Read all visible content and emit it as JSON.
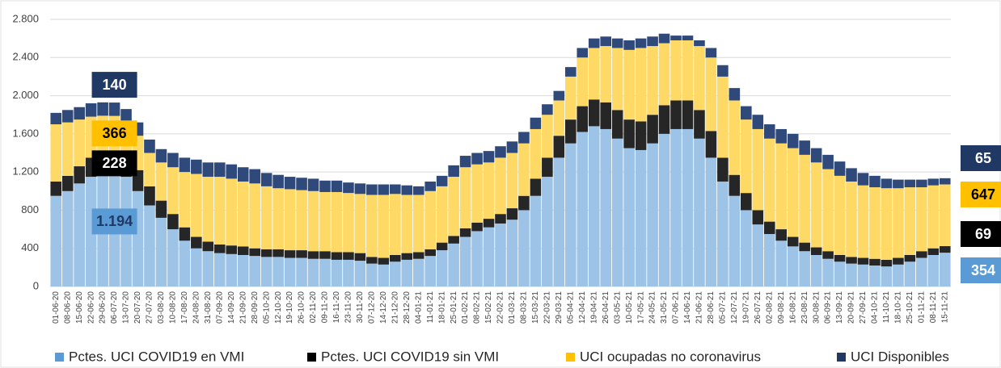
{
  "chart_data": {
    "type": "stacked-bar",
    "categories": [
      "01-06-20",
      "08-06-20",
      "15-06-20",
      "22-06-20",
      "29-06-20",
      "06-07-20",
      "13-07-20",
      "20-07-20",
      "27-07-20",
      "03-08-20",
      "10-08-20",
      "17-08-20",
      "24-08-20",
      "31-08-20",
      "07-09-20",
      "14-09-20",
      "21-09-20",
      "28-09-20",
      "05-10-20",
      "12-10-20",
      "19-10-20",
      "26-10-20",
      "02-11-20",
      "09-11-20",
      "16-11-20",
      "23-11-20",
      "30-11-20",
      "07-12-20",
      "14-12-20",
      "21-12-20",
      "28-12-20",
      "04-01-21",
      "11-01-21",
      "18-01-21",
      "25-01-21",
      "01-02-21",
      "08-02-21",
      "15-02-21",
      "22-02-21",
      "01-03-21",
      "08-03-21",
      "15-03-21",
      "22-03-21",
      "29-03-21",
      "05-04-21",
      "12-04-21",
      "19-04-21",
      "26-04-21",
      "03-05-21",
      "10-05-21",
      "17-05-21",
      "24-05-21",
      "31-05-21",
      "07-06-21",
      "14-06-21",
      "21-06-21",
      "28-06-21",
      "05-07-21",
      "12-07-21",
      "19-07-21",
      "26-07-21",
      "02-08-21",
      "09-08-21",
      "16-08-21",
      "23-08-21",
      "30-08-21",
      "06-09-21",
      "13-09-21",
      "20-09-21",
      "27-09-21",
      "04-10-21",
      "11-10-21",
      "18-10-21",
      "25-10-21",
      "01-11-21",
      "08-11-21",
      "15-11-21"
    ],
    "series": [
      {
        "name": "Pctes. UCI COVID19 en VMI",
        "color": "#9dc3e6",
        "label_color": "#5b9bd5",
        "values": [
          950,
          1000,
          1080,
          1150,
          1180,
          1194,
          1150,
          1000,
          850,
          720,
          600,
          480,
          400,
          370,
          350,
          340,
          330,
          320,
          310,
          310,
          300,
          300,
          290,
          290,
          280,
          280,
          270,
          240,
          230,
          260,
          280,
          290,
          320,
          380,
          450,
          520,
          580,
          620,
          660,
          700,
          800,
          950,
          1150,
          1350,
          1500,
          1620,
          1680,
          1650,
          1550,
          1450,
          1430,
          1500,
          1600,
          1650,
          1650,
          1550,
          1350,
          1100,
          950,
          800,
          650,
          550,
          480,
          420,
          370,
          330,
          290,
          260,
          240,
          230,
          220,
          210,
          230,
          260,
          300,
          330,
          354
        ],
        "value_labels": [
          null,
          null,
          null,
          null,
          null,
          "1.194",
          null,
          null,
          null,
          null,
          null,
          null,
          null,
          null,
          null,
          null,
          null,
          null,
          null,
          null,
          null,
          null,
          null,
          null,
          null,
          null,
          null,
          null,
          null,
          null,
          null,
          null,
          null,
          null,
          null,
          null,
          null,
          null,
          null,
          null,
          null,
          null,
          null,
          null,
          null,
          null,
          null,
          null,
          null,
          null,
          null,
          null,
          null,
          null,
          null,
          null,
          null,
          null,
          null,
          null,
          null,
          null,
          null,
          null,
          null,
          null,
          null,
          null,
          null,
          null,
          null,
          null,
          null,
          null,
          null,
          null,
          "354"
        ]
      },
      {
        "name": "Pctes. UCI COVID19 sin VMI",
        "color": "#262626",
        "label_color": "#000000",
        "values": [
          150,
          160,
          180,
          200,
          220,
          228,
          230,
          220,
          200,
          180,
          160,
          140,
          120,
          100,
          90,
          90,
          90,
          80,
          80,
          80,
          80,
          80,
          80,
          80,
          80,
          80,
          80,
          70,
          70,
          70,
          70,
          70,
          70,
          80,
          80,
          90,
          90,
          90,
          100,
          120,
          150,
          180,
          200,
          230,
          250,
          270,
          280,
          280,
          300,
          300,
          300,
          300,
          300,
          300,
          300,
          300,
          280,
          250,
          220,
          180,
          150,
          130,
          120,
          100,
          90,
          80,
          80,
          70,
          70,
          70,
          70,
          70,
          70,
          70,
          70,
          70,
          69
        ],
        "value_labels": [
          null,
          null,
          null,
          null,
          null,
          "228",
          null,
          null,
          null,
          null,
          null,
          null,
          null,
          null,
          null,
          null,
          null,
          null,
          null,
          null,
          null,
          null,
          null,
          null,
          null,
          null,
          null,
          null,
          null,
          null,
          null,
          null,
          null,
          null,
          null,
          null,
          null,
          null,
          null,
          null,
          null,
          null,
          null,
          null,
          null,
          null,
          null,
          null,
          null,
          null,
          null,
          null,
          null,
          null,
          null,
          null,
          null,
          null,
          null,
          null,
          null,
          null,
          null,
          null,
          null,
          null,
          null,
          null,
          null,
          null,
          null,
          null,
          null,
          null,
          null,
          null,
          "69"
        ]
      },
      {
        "name": "UCI ocupadas no coronavirus",
        "color": "#ffd966",
        "label_color": "#ffc000",
        "values": [
          600,
          560,
          490,
          430,
          390,
          366,
          340,
          360,
          350,
          400,
          490,
          580,
          660,
          680,
          710,
          700,
          680,
          680,
          660,
          640,
          640,
          630,
          630,
          620,
          630,
          620,
          620,
          650,
          660,
          640,
          610,
          600,
          610,
          590,
          620,
          640,
          610,
          590,
          590,
          580,
          550,
          520,
          450,
          370,
          450,
          510,
          540,
          590,
          650,
          730,
          770,
          720,
          650,
          630,
          630,
          670,
          770,
          850,
          780,
          770,
          850,
          870,
          900,
          930,
          920,
          890,
          860,
          830,
          790,
          760,
          750,
          750,
          730,
          710,
          670,
          660,
          647
        ],
        "value_labels": [
          null,
          null,
          null,
          null,
          null,
          "366",
          null,
          null,
          null,
          null,
          null,
          null,
          null,
          null,
          null,
          null,
          null,
          null,
          null,
          null,
          null,
          null,
          null,
          null,
          null,
          null,
          null,
          null,
          null,
          null,
          null,
          null,
          null,
          null,
          null,
          null,
          null,
          null,
          null,
          null,
          null,
          null,
          null,
          null,
          null,
          null,
          null,
          null,
          null,
          null,
          null,
          null,
          null,
          null,
          null,
          null,
          null,
          null,
          null,
          null,
          null,
          null,
          null,
          null,
          null,
          null,
          null,
          null,
          null,
          null,
          null,
          null,
          null,
          null,
          null,
          null,
          "647"
        ]
      },
      {
        "name": "UCI Disponibles",
        "color": "#2f4a7a",
        "label_color": "#1f3864",
        "values": [
          120,
          130,
          130,
          140,
          140,
          140,
          140,
          140,
          140,
          140,
          150,
          150,
          150,
          150,
          150,
          150,
          150,
          150,
          140,
          140,
          130,
          130,
          130,
          120,
          120,
          110,
          110,
          110,
          110,
          100,
          100,
          90,
          100,
          110,
          120,
          120,
          120,
          120,
          120,
          120,
          120,
          120,
          110,
          100,
          100,
          100,
          100,
          100,
          100,
          100,
          100,
          100,
          100,
          50,
          50,
          60,
          100,
          120,
          130,
          140,
          150,
          150,
          150,
          150,
          150,
          150,
          150,
          150,
          140,
          130,
          120,
          100,
          90,
          80,
          80,
          70,
          65
        ],
        "value_labels": [
          null,
          null,
          null,
          null,
          null,
          "140",
          null,
          null,
          null,
          null,
          null,
          null,
          null,
          null,
          null,
          null,
          null,
          null,
          null,
          null,
          null,
          null,
          null,
          null,
          null,
          null,
          null,
          null,
          null,
          null,
          null,
          null,
          null,
          null,
          null,
          null,
          null,
          null,
          null,
          null,
          null,
          null,
          null,
          null,
          null,
          null,
          null,
          null,
          null,
          null,
          null,
          null,
          null,
          null,
          null,
          null,
          null,
          null,
          null,
          null,
          null,
          null,
          null,
          null,
          null,
          null,
          null,
          null,
          null,
          null,
          null,
          null,
          null,
          null,
          null,
          null,
          "65"
        ]
      }
    ],
    "ylim": [
      0,
      2800
    ],
    "yticks": [
      0,
      400,
      800,
      {
        "value": 1200,
        "label": "1.200"
      },
      {
        "value": 1600,
        "label": "1.600"
      },
      {
        "value": 2000,
        "label": "2.000"
      },
      {
        "value": 2400,
        "label": "2.400"
      },
      {
        "value": 2800,
        "label": "2.800"
      }
    ],
    "grid": true,
    "legend": "bottom"
  }
}
